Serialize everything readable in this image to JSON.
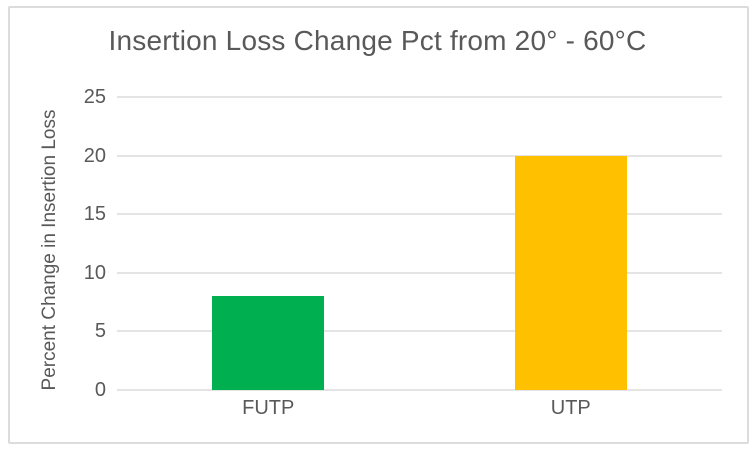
{
  "chart_data": {
    "type": "bar",
    "title": "Insertion Loss Change Pct from 20° - 60°C",
    "categories": [
      "FUTP",
      "UTP"
    ],
    "values": [
      8,
      20
    ],
    "bar_colors": [
      "#00B050",
      "#FFC000"
    ],
    "ylabel": "Percent Change in Insertion Loss",
    "xlabel": "",
    "ylim": [
      0,
      25
    ],
    "yticks": [
      0,
      5,
      10,
      15,
      20,
      25
    ],
    "grid": "horizontal",
    "legend": "none"
  },
  "colors": {
    "futp_bar": "#00B050",
    "utp_bar": "#FFC000",
    "text_gray": "#595959",
    "gridline": "#E4E4E4",
    "border": "#DCDCDC",
    "background": "#FFFFFF"
  }
}
